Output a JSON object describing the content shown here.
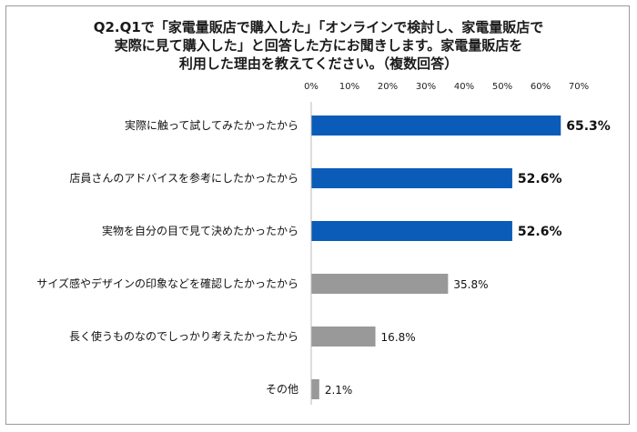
{
  "chart_data": {
    "type": "bar",
    "orientation": "horizontal",
    "title_lines": [
      "Q2.Q1で「家電量販店で購入した」「オンラインで検討し、家電量販店で",
      "実際に見て購入した」と回答した方にお聞きします。家電量販店を",
      "利用した理由を教えてください。（複数回答）"
    ],
    "x_ticks": [
      "0%",
      "10%",
      "20%",
      "30%",
      "40%",
      "50%",
      "60%",
      "70%"
    ],
    "xlim": [
      0,
      70
    ],
    "grid": false,
    "categories": [
      "実際に触って試してみたかったから",
      "店員さんのアドバイスを参考にしたかったから",
      "実物を自分の目で見て決めたかったから",
      "サイズ感やデザインの印象などを確認したかったから",
      "長く使うものなのでしっかり考えたかったから",
      "その他"
    ],
    "values": [
      65.3,
      52.6,
      52.6,
      35.8,
      16.8,
      2.1
    ],
    "value_labels": [
      "65.3%",
      "52.6%",
      "52.6%",
      "35.8%",
      "16.8%",
      "2.1%"
    ],
    "colors": {
      "highlight": "#0a5cb8",
      "normal": "#999999"
    },
    "highlight_count": 3
  }
}
